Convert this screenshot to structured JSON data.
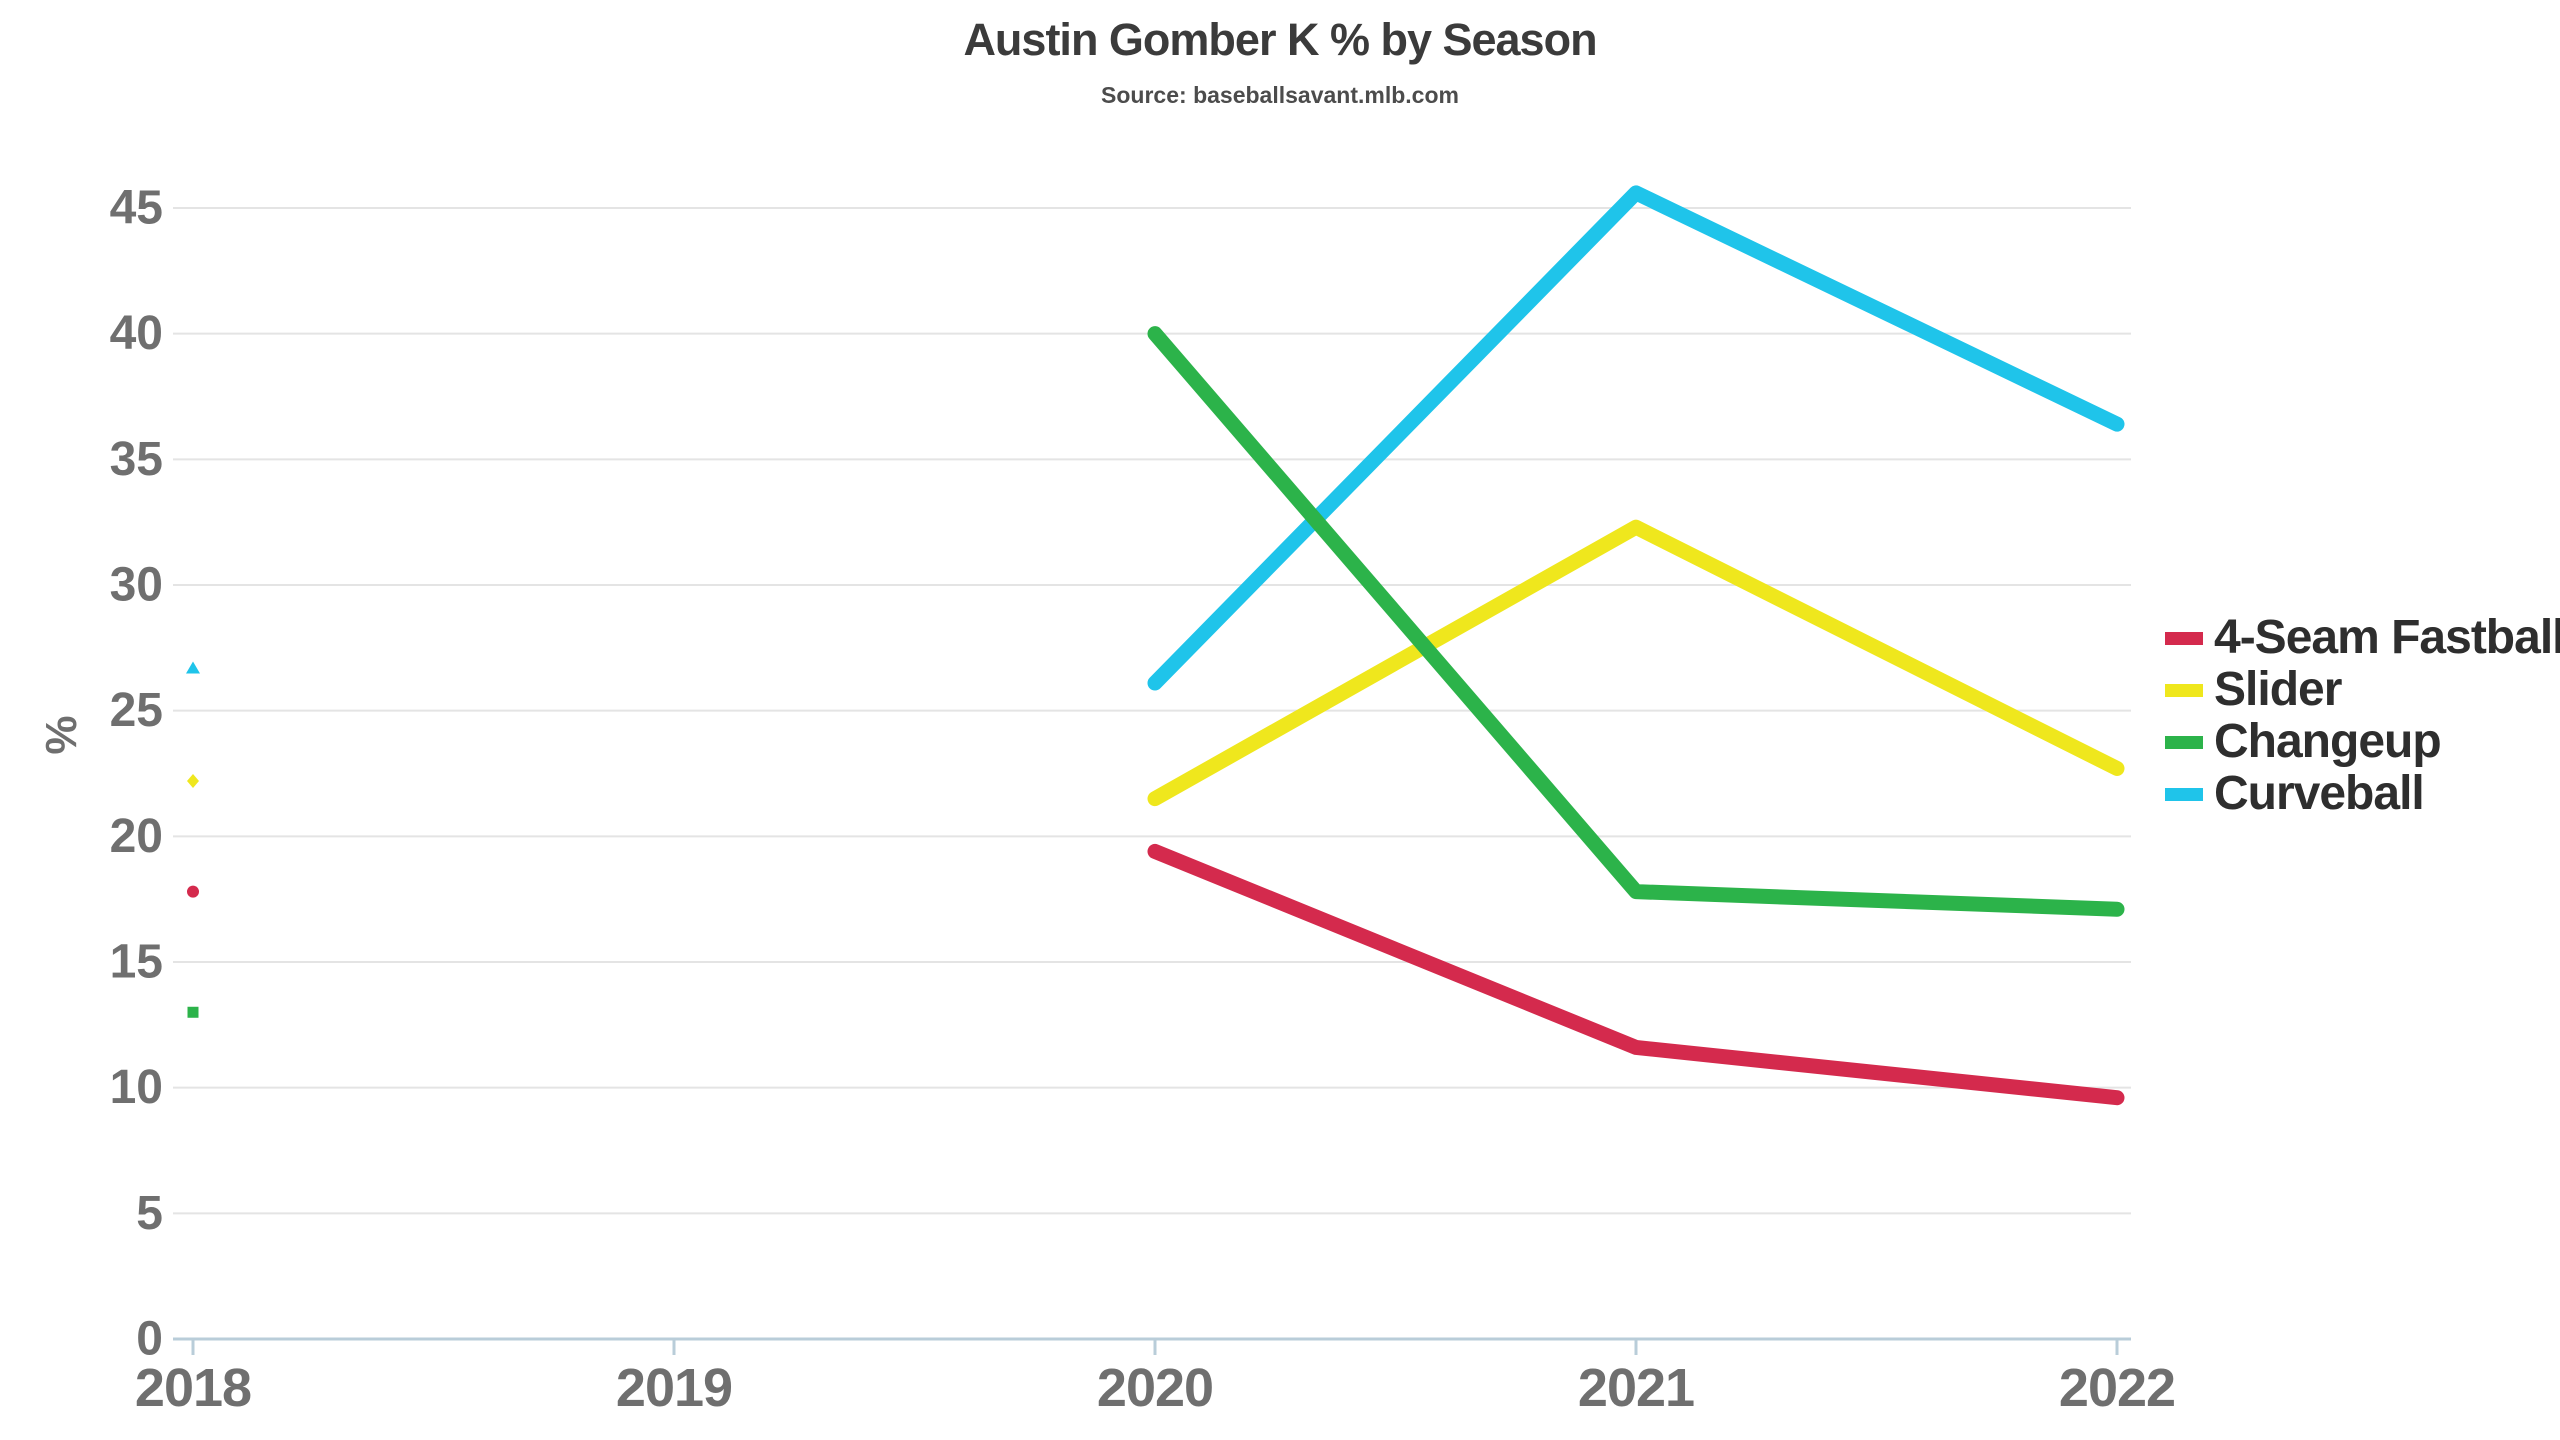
{
  "chart_data": {
    "type": "line",
    "title": "Austin Gomber K % by Season",
    "subtitle": "Source: baseballsavant.mlb.com",
    "xlabel": "",
    "ylabel": "%",
    "categories": [
      "2018",
      "2019",
      "2020",
      "2021",
      "2022"
    ],
    "ylim": [
      0,
      45
    ],
    "ytick_interval": 5,
    "grid": "horizontal",
    "legend_position": "right",
    "background_color": "#ffffff",
    "grid_color": "#e4e4e4",
    "axis_color": "#b9cdd9",
    "tick_label_color": "#6f6f6f",
    "title_color": "#3b3b3b",
    "subtitle_color": "#4c4c4c",
    "legend_text_color": "#2e2e2e",
    "series": [
      {
        "name": "4-Seam Fastball",
        "color": "#d42a4d",
        "marker": "circle",
        "values": [
          17.8,
          null,
          19.4,
          11.6,
          9.6
        ]
      },
      {
        "name": "Slider",
        "color": "#efe71d",
        "marker": "diamond",
        "values": [
          22.2,
          null,
          21.5,
          32.3,
          22.7
        ]
      },
      {
        "name": "Changeup",
        "color": "#2cb34a",
        "marker": "square",
        "values": [
          13.0,
          null,
          40.0,
          17.8,
          17.1
        ]
      },
      {
        "name": "Curveball",
        "color": "#1fc4ea",
        "marker": "triangle",
        "values": [
          26.7,
          null,
          26.1,
          45.6,
          36.4
        ]
      }
    ]
  }
}
